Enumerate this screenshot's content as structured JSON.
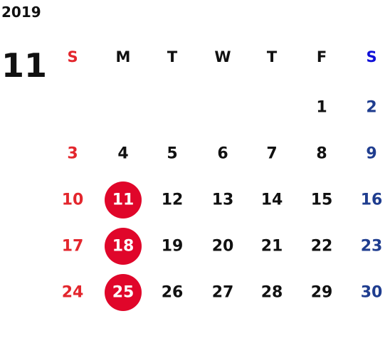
{
  "year": "2019",
  "month": "11",
  "weekdays": [
    "S",
    "M",
    "T",
    "W",
    "T",
    "F",
    "S"
  ],
  "weeks": [
    [
      null,
      null,
      null,
      null,
      null,
      {
        "day": 1
      },
      {
        "day": 2
      }
    ],
    [
      {
        "day": 3
      },
      {
        "day": 4
      },
      {
        "day": 5
      },
      {
        "day": 6
      },
      {
        "day": 7
      },
      {
        "day": 8
      },
      {
        "day": 9
      }
    ],
    [
      {
        "day": 10
      },
      {
        "day": 11,
        "circled": true
      },
      {
        "day": 12
      },
      {
        "day": 13
      },
      {
        "day": 14
      },
      {
        "day": 15
      },
      {
        "day": 16
      }
    ],
    [
      {
        "day": 17
      },
      {
        "day": 18,
        "circled": true
      },
      {
        "day": 19
      },
      {
        "day": 20
      },
      {
        "day": 21
      },
      {
        "day": 22
      },
      {
        "day": 23
      }
    ],
    [
      {
        "day": 24
      },
      {
        "day": 25,
        "circled": true
      },
      {
        "day": 26
      },
      {
        "day": 27
      },
      {
        "day": 28
      },
      {
        "day": 29
      },
      {
        "day": 30
      }
    ]
  ]
}
